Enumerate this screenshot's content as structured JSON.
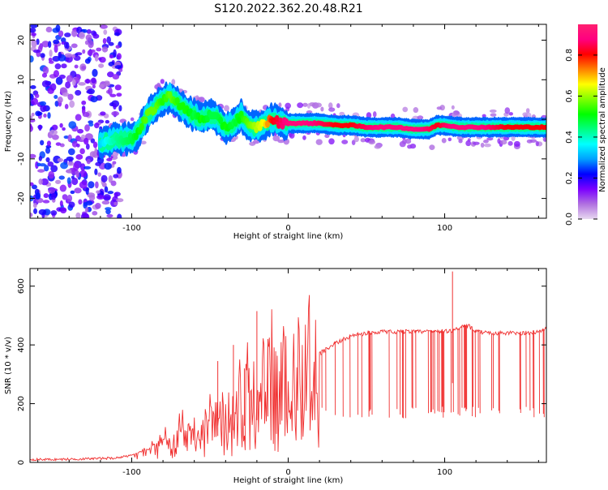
{
  "title": "S120.2022.362.20.48.R21",
  "chart_data": [
    {
      "type": "heatmap",
      "xlabel": "Height of straight line (km)",
      "ylabel": "Frequency (Hz)",
      "xlim": [
        -165,
        165
      ],
      "ylim": [
        -25,
        24
      ],
      "x_ticks": [
        -100,
        0,
        100
      ],
      "x_tick_labels": [
        "-100",
        "0",
        "100"
      ],
      "y_ticks": [
        -20,
        -10,
        0,
        10,
        20
      ],
      "y_tick_labels": [
        "-20",
        "-10",
        "0",
        "10",
        "20"
      ],
      "grid": false,
      "colorbar": {
        "label": "Normalized spectral amplitude",
        "range": [
          0.0,
          0.95
        ],
        "ticks": [
          0.0,
          0.2,
          0.4,
          0.6,
          0.8
        ],
        "tick_labels": [
          "0.0",
          "0.2",
          "0.4",
          "0.6",
          "0.8"
        ],
        "colors": [
          "#e8d8f0",
          "#b070e0",
          "#7b00ff",
          "#0000ff",
          "#00a0ff",
          "#00ffff",
          "#00ff80",
          "#00ff00",
          "#80ff00",
          "#ffff00",
          "#ff8000",
          "#ff0000",
          "#ff0080",
          "#ff2070"
        ]
      },
      "ridge": {
        "x": [
          -120,
          -110,
          -100,
          -95,
          -90,
          -85,
          -80,
          -75,
          -70,
          -65,
          -60,
          -55,
          -50,
          -45,
          -40,
          -35,
          -30,
          -25,
          -20,
          -15,
          -10,
          -5,
          0,
          10,
          20,
          30,
          40,
          50,
          60,
          70,
          80,
          90,
          95,
          100,
          110,
          120,
          130,
          140,
          150,
          160,
          165
        ],
        "frequency": [
          -6,
          -5,
          -5,
          -3,
          1,
          3,
          5,
          6,
          4,
          2,
          1,
          0,
          1,
          0,
          -2,
          -1,
          1,
          -2,
          -2,
          -1,
          0,
          -1,
          -1,
          -1,
          -1,
          -1.5,
          -1.5,
          -2,
          -2,
          -2,
          -2.5,
          -2.5,
          -1.5,
          -1.5,
          -2,
          -2,
          -2,
          -2,
          -2,
          -2,
          -2
        ],
        "amplitude": [
          0.35,
          0.45,
          0.5,
          0.55,
          0.6,
          0.6,
          0.55,
          0.6,
          0.55,
          0.55,
          0.5,
          0.55,
          0.5,
          0.5,
          0.55,
          0.5,
          0.55,
          0.6,
          0.65,
          0.7,
          0.85,
          0.9,
          0.95,
          0.95,
          0.9,
          0.85,
          0.85,
          0.9,
          0.95,
          0.95,
          0.95,
          0.9,
          0.85,
          0.9,
          0.95,
          0.95,
          0.9,
          0.85,
          0.85,
          0.85,
          0.85
        ]
      }
    },
    {
      "type": "line",
      "xlabel": "Height of straight line (km)",
      "ylabel": "SNR (10 * v/v)",
      "xlim": [
        -165,
        165
      ],
      "ylim": [
        0,
        660
      ],
      "x_ticks": [
        -100,
        0,
        100
      ],
      "x_tick_labels": [
        "-100",
        "0",
        "100"
      ],
      "y_ticks": [
        0,
        200,
        400,
        600
      ],
      "y_tick_labels": [
        "0",
        "200",
        "400",
        "600"
      ],
      "grid": false,
      "color": "#f03030",
      "series": [
        {
          "x": [
            -165,
            -150,
            -130,
            -110,
            -100,
            -90,
            -80,
            -70,
            -60,
            -50,
            -40,
            -30,
            -20,
            -10,
            0,
            10,
            20,
            30,
            40,
            50,
            60,
            70,
            80,
            90,
            100,
            105,
            110,
            115,
            120,
            130,
            140,
            150,
            160,
            165
          ],
          "values": [
            10,
            10,
            12,
            15,
            25,
            45,
            70,
            90,
            110,
            135,
            165,
            200,
            240,
            270,
            300,
            330,
            370,
            405,
            430,
            440,
            445,
            445,
            445,
            445,
            445,
            450,
            460,
            465,
            445,
            440,
            440,
            440,
            445,
            455
          ],
          "spike_x": [
            -45,
            -35,
            -28,
            -20,
            -13,
            105
          ],
          "spike_values": [
            345,
            400,
            320,
            515,
            420,
            650
          ]
        }
      ]
    }
  ]
}
